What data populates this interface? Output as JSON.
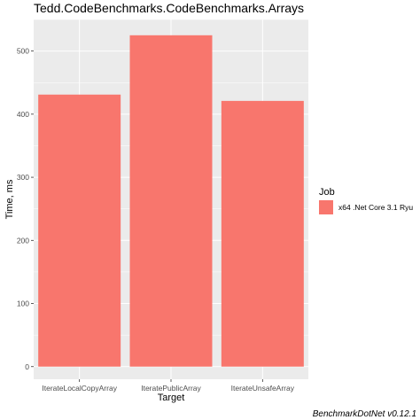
{
  "chart_data": {
    "type": "bar",
    "title": "Tedd.CodeBenchmarks.CodeBenchmarks.Arrays",
    "xlabel": "Target",
    "ylabel": "Time, ms",
    "categories": [
      "IterateLocalCopyArray",
      "IteratePublicArray",
      "IterateUnsafeArray"
    ],
    "series": [
      {
        "name": "x64 .Net Core 3.1 Ryu",
        "values": [
          431,
          525,
          421
        ]
      }
    ],
    "yticks": [
      0,
      100,
      200,
      300,
      400,
      500
    ],
    "ylim": [
      -20,
      550
    ],
    "grid": true,
    "legend": {
      "title": "Job",
      "position": "right"
    },
    "colors": {
      "bar": "#F8766D",
      "panel": "#EBEBEB",
      "grid": "#FFFFFF",
      "axis_text": "#4D4D4D"
    },
    "caption": "BenchmarkDotNet v0.12.1"
  }
}
